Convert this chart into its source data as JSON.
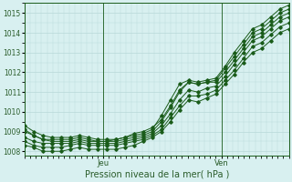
{
  "title": "",
  "xlabel": "Pression niveau de la mer( hPa )",
  "ylabel": "",
  "bg_color": "#d8f0f0",
  "grid_color": "#b8d8d8",
  "line_color": "#1a5c1a",
  "ylim": [
    1007.8,
    1015.5
  ],
  "xlim": [
    0,
    47
  ],
  "jeu_x": 14,
  "ven_x": 35,
  "tick_label_color": "#2a5c2a",
  "series": [
    [
      1009.1,
      1008.8,
      1008.6,
      1008.6,
      1008.6,
      1008.6,
      1008.7,
      1008.6,
      1008.5,
      1008.5,
      1008.5,
      1008.6,
      1008.7,
      1008.8,
      1009.0,
      1009.5,
      1010.2,
      1011.0,
      1011.5,
      1011.4,
      1011.5,
      1011.6,
      1012.2,
      1012.8,
      1013.4,
      1014.0,
      1014.2,
      1014.6,
      1015.0,
      1015.2
    ],
    [
      1008.7,
      1008.5,
      1008.4,
      1008.4,
      1008.4,
      1008.4,
      1008.5,
      1008.4,
      1008.4,
      1008.4,
      1008.4,
      1008.5,
      1008.6,
      1008.7,
      1008.9,
      1009.3,
      1009.9,
      1010.6,
      1011.1,
      1011.0,
      1011.2,
      1011.3,
      1011.8,
      1012.4,
      1013.0,
      1013.6,
      1013.8,
      1014.2,
      1014.6,
      1014.8
    ],
    [
      1008.5,
      1008.3,
      1008.2,
      1008.2,
      1008.2,
      1008.3,
      1008.4,
      1008.3,
      1008.3,
      1008.3,
      1008.3,
      1008.4,
      1008.5,
      1008.6,
      1008.8,
      1009.1,
      1009.7,
      1010.3,
      1010.8,
      1010.8,
      1010.9,
      1011.1,
      1011.6,
      1012.1,
      1012.7,
      1013.3,
      1013.5,
      1013.9,
      1014.3,
      1014.5
    ],
    [
      1008.3,
      1008.2,
      1008.0,
      1008.0,
      1008.0,
      1008.1,
      1008.2,
      1008.1,
      1008.1,
      1008.1,
      1008.1,
      1008.2,
      1008.3,
      1008.5,
      1008.7,
      1009.0,
      1009.5,
      1010.1,
      1010.6,
      1010.5,
      1010.7,
      1010.9,
      1011.4,
      1011.9,
      1012.5,
      1013.0,
      1013.2,
      1013.6,
      1014.0,
      1014.2
    ],
    [
      1009.0,
      1008.8,
      1008.6,
      1008.5,
      1008.5,
      1008.5,
      1008.6,
      1008.5,
      1008.5,
      1008.5,
      1008.6,
      1008.7,
      1008.9,
      1009.0,
      1009.2,
      1009.6,
      1010.3,
      1011.1,
      1011.5,
      1011.4,
      1011.5,
      1011.5,
      1012.0,
      1012.6,
      1013.2,
      1013.8,
      1014.0,
      1014.4,
      1014.8,
      1015.0
    ],
    [
      1009.3,
      1009.0,
      1008.8,
      1008.7,
      1008.7,
      1008.7,
      1008.8,
      1008.7,
      1008.6,
      1008.6,
      1008.6,
      1008.7,
      1008.8,
      1008.9,
      1009.1,
      1009.8,
      1010.6,
      1011.4,
      1011.6,
      1011.5,
      1011.6,
      1011.7,
      1012.3,
      1013.0,
      1013.6,
      1014.2,
      1014.4,
      1014.8,
      1015.2,
      1015.4
    ]
  ]
}
